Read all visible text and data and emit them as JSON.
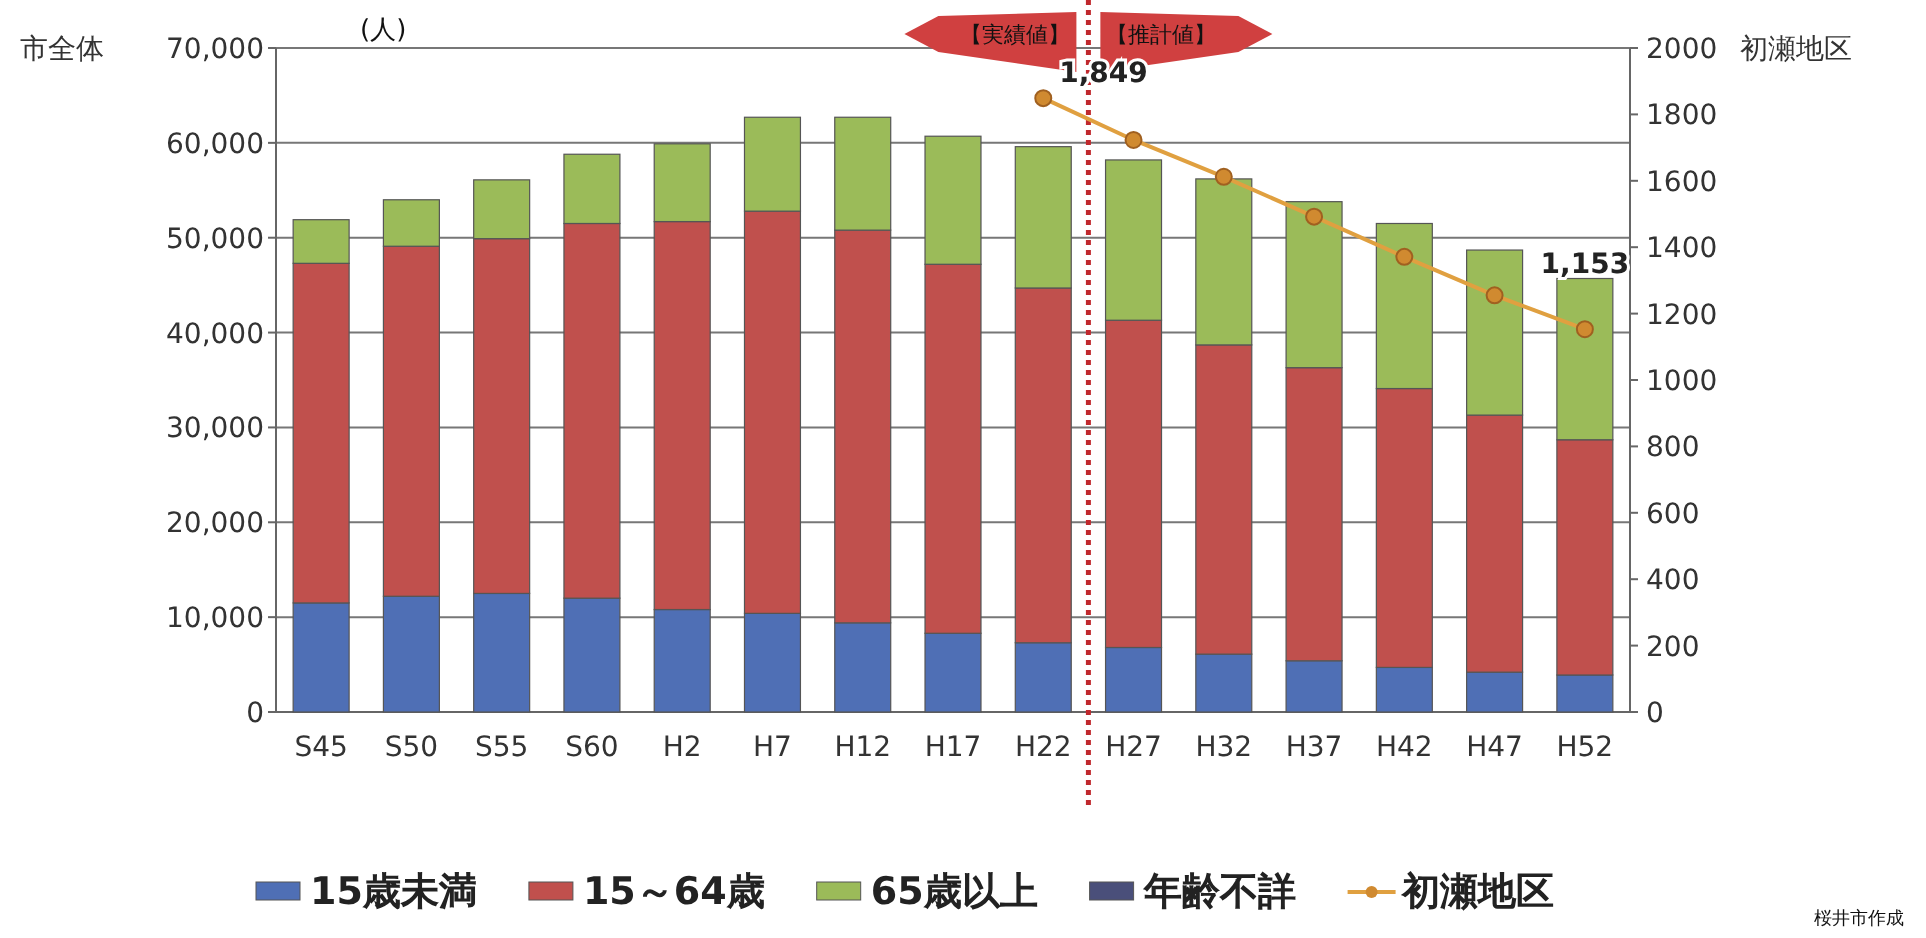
{
  "chart_data": {
    "type": "bar",
    "stacked": true,
    "ylabel": "市全体",
    "y2label": "初瀬地区",
    "categories": [
      "S45",
      "S50",
      "S55",
      "S60",
      "H2",
      "H7",
      "H12",
      "H17",
      "H22",
      "H27",
      "H32",
      "H37",
      "H42",
      "H47",
      "H52"
    ],
    "series": [
      {
        "name": "15歳未満",
        "color": "#4f6fb5",
        "values": [
          11500,
          12200,
          12500,
          12000,
          10800,
          10400,
          9400,
          8300,
          7300,
          6800,
          6100,
          5400,
          4700,
          4200,
          3900
        ]
      },
      {
        "name": "15～64歳",
        "color": "#c0504d",
        "values": [
          35800,
          36900,
          37400,
          39500,
          40900,
          42400,
          41400,
          38900,
          37400,
          34500,
          32600,
          30900,
          29400,
          27100,
          24800
        ]
      },
      {
        "name": "65歳以上",
        "color": "#9bbb59",
        "values": [
          4600,
          4900,
          6200,
          7300,
          8200,
          9900,
          11900,
          13500,
          14900,
          16900,
          17500,
          17500,
          17400,
          17400,
          17000
        ]
      },
      {
        "name": "年齢不詳",
        "color": "#4a4f7a",
        "values": [
          null,
          null,
          null,
          null,
          null,
          null,
          null,
          null,
          null,
          null,
          null,
          null,
          null,
          null,
          null
        ]
      },
      {
        "name": "初瀬地区",
        "type": "line",
        "axis": "y2",
        "color": "#e0a040",
        "marker": "circle",
        "values": [
          null,
          null,
          null,
          null,
          null,
          null,
          null,
          null,
          1849,
          1723,
          1612,
          1492,
          1371,
          1255,
          1153
        ],
        "value_labels": [
          null,
          null,
          null,
          null,
          null,
          null,
          null,
          null,
          "1,849",
          null,
          null,
          null,
          null,
          null,
          "1,153"
        ]
      }
    ],
    "ylim": [
      0,
      70000
    ],
    "yticks": [
      0,
      {
        "value": 10000,
        "label": "10,000"
      },
      {
        "value": 20000,
        "label": "20,000"
      },
      {
        "value": 30000,
        "label": "30,000"
      },
      {
        "value": 40000,
        "label": "40,000"
      },
      {
        "value": 50000,
        "label": "50,000"
      },
      {
        "value": 60000,
        "label": "60,000"
      },
      {
        "value": 70000,
        "label": "70,000"
      }
    ],
    "y2lim": [
      0,
      2000
    ],
    "y2ticks": [
      0,
      200,
      400,
      600,
      800,
      1000,
      1200,
      1400,
      1600,
      1800,
      2000
    ],
    "grid": "y",
    "legend": "bottom",
    "annotations": [
      "(人)",
      "【実績値】",
      "【推計値】",
      "桜井市作成"
    ]
  }
}
